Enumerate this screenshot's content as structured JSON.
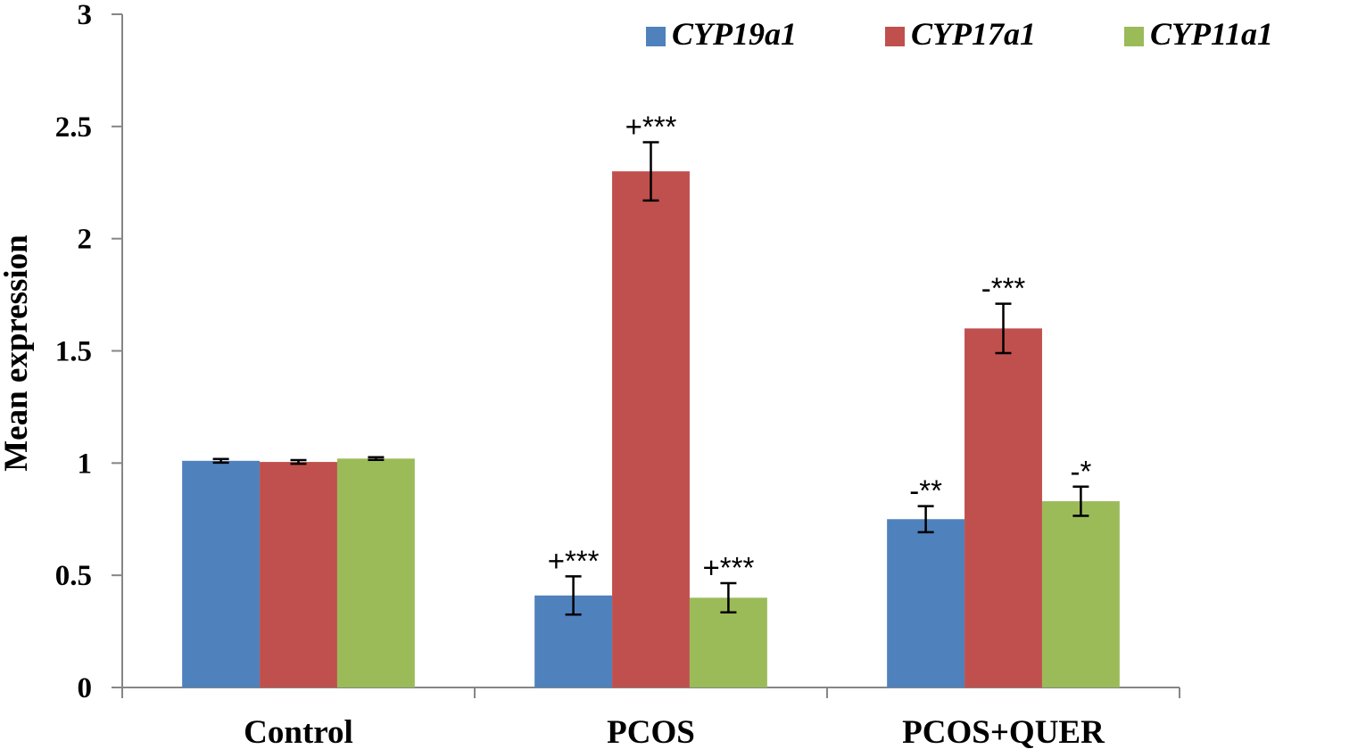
{
  "chart_data": {
    "type": "bar",
    "title": "",
    "xlabel": "",
    "ylabel": "Mean expression",
    "ylim": [
      0,
      3
    ],
    "yticks": [
      0,
      0.5,
      1,
      1.5,
      2,
      2.5,
      3
    ],
    "ytick_labels": [
      "0",
      "0.5",
      "1",
      "1.5",
      "2",
      "2.5",
      "3"
    ],
    "grid": false,
    "legend_position": "top-right",
    "categories": [
      "Control",
      "PCOS",
      "PCOS+QUER"
    ],
    "series": [
      {
        "name": "CYP19a1",
        "color": "#4F81BD",
        "values": [
          1.01,
          0.41,
          0.75
        ],
        "errors": [
          0.008,
          0.085,
          0.058
        ],
        "annotations": [
          "",
          "+***",
          "-**"
        ]
      },
      {
        "name": "CYP17a1",
        "color": "#C0504D",
        "values": [
          1.005,
          2.3,
          1.6
        ],
        "errors": [
          0.008,
          0.13,
          0.11
        ],
        "annotations": [
          "",
          "+***",
          "-***"
        ]
      },
      {
        "name": "CYP11a1",
        "color": "#9BBB59",
        "values": [
          1.02,
          0.4,
          0.83
        ],
        "errors": [
          0.006,
          0.065,
          0.065
        ],
        "annotations": [
          "",
          "+***",
          "-*"
        ]
      }
    ]
  }
}
